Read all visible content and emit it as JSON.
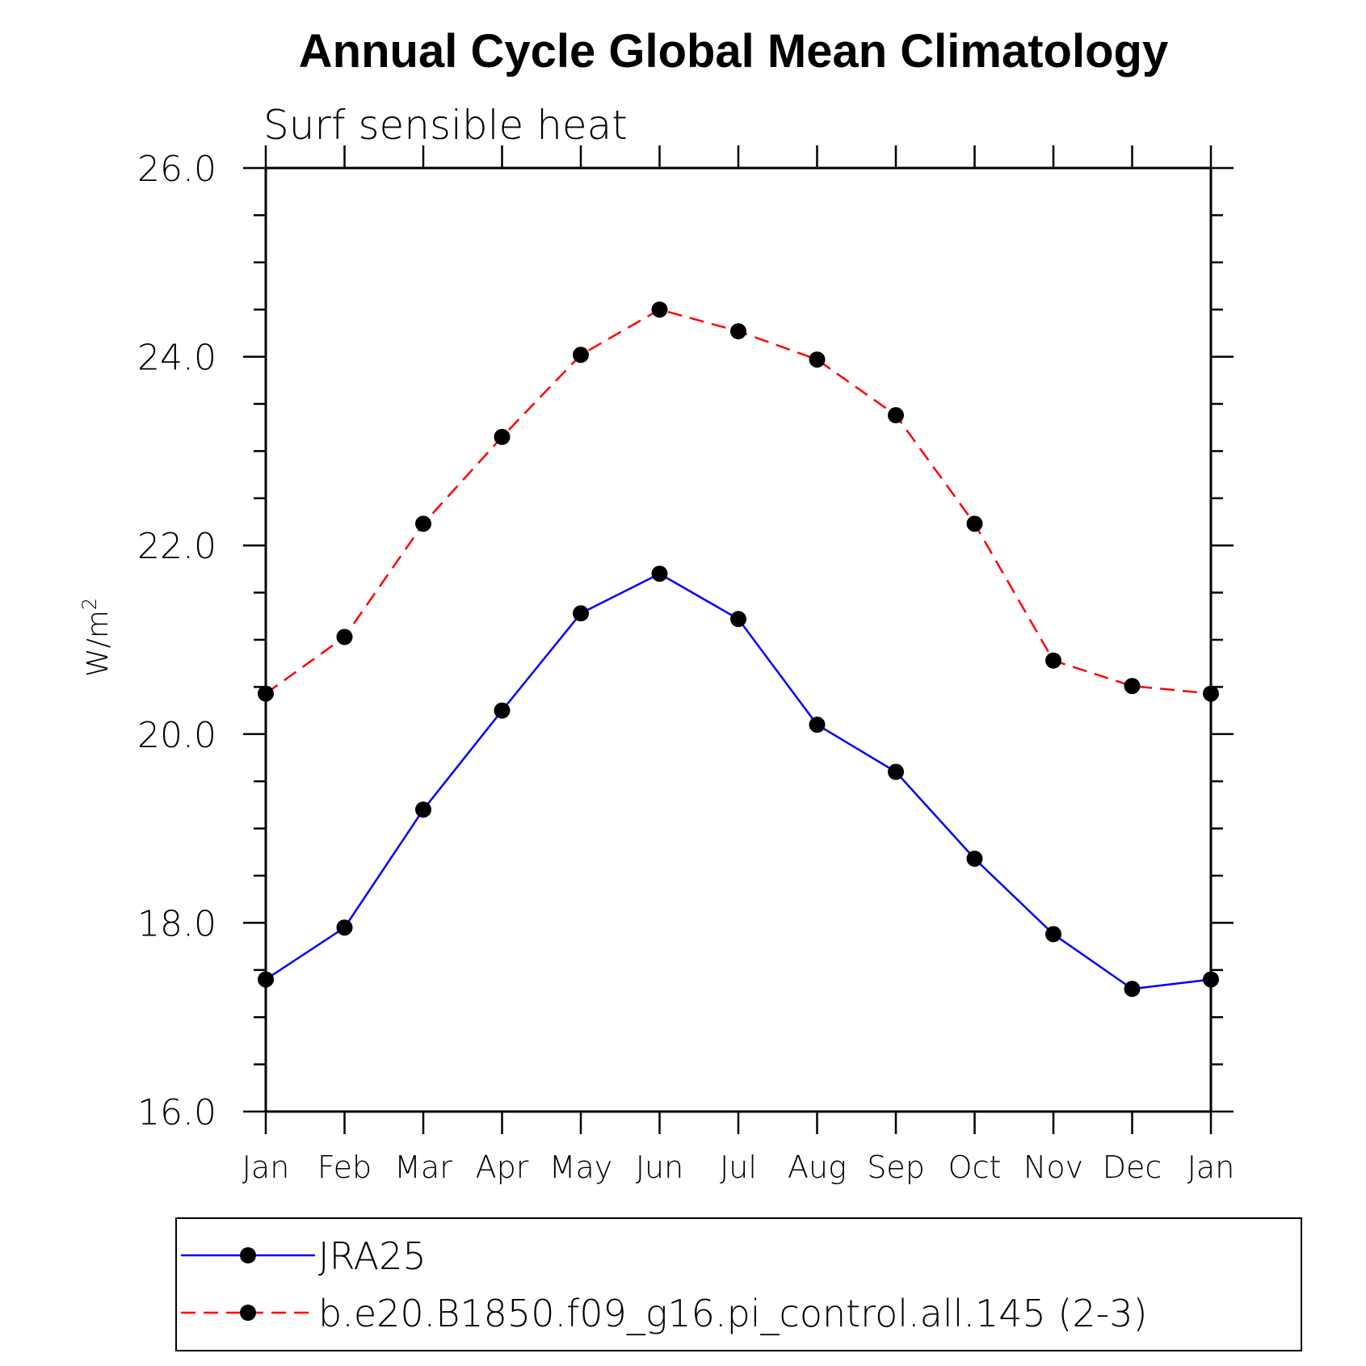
{
  "chart_data": {
    "type": "line",
    "title": "Annual Cycle Global Mean Climatology",
    "subtitle": "Surf sensible heat",
    "ylabel": "W/m",
    "ylabel_superscript": "2",
    "ylim": [
      16.0,
      26.0
    ],
    "ytick_values": [
      16.0,
      18.0,
      20.0,
      22.0,
      24.0,
      26.0
    ],
    "ytick_labels": [
      "16.0",
      "18.0",
      "20.0",
      "22.0",
      "24.0",
      "26.0"
    ],
    "minor_tick_step": 0.5,
    "categories": [
      "Jan",
      "Feb",
      "Mar",
      "Apr",
      "May",
      "Jun",
      "Jul",
      "Aug",
      "Sep",
      "Oct",
      "Nov",
      "Dec",
      "Jan"
    ],
    "series": [
      {
        "name": "JRA25",
        "color": "#0000ff",
        "dash": "solid",
        "marker": "filled-circle",
        "values": [
          17.4,
          17.95,
          19.2,
          20.25,
          21.28,
          21.7,
          21.22,
          20.1,
          19.6,
          18.68,
          17.88,
          17.3,
          17.4
        ]
      },
      {
        "name": "b.e20.B1850.f09_g16.pi_control.all.145 (2-3)",
        "color": "#ff0000",
        "dash": "dashed",
        "marker": "filled-circle",
        "values": [
          20.43,
          21.03,
          22.23,
          23.15,
          24.02,
          24.5,
          24.27,
          23.97,
          23.38,
          22.23,
          20.78,
          20.51,
          20.43
        ]
      }
    ],
    "legend_position": "bottom"
  }
}
